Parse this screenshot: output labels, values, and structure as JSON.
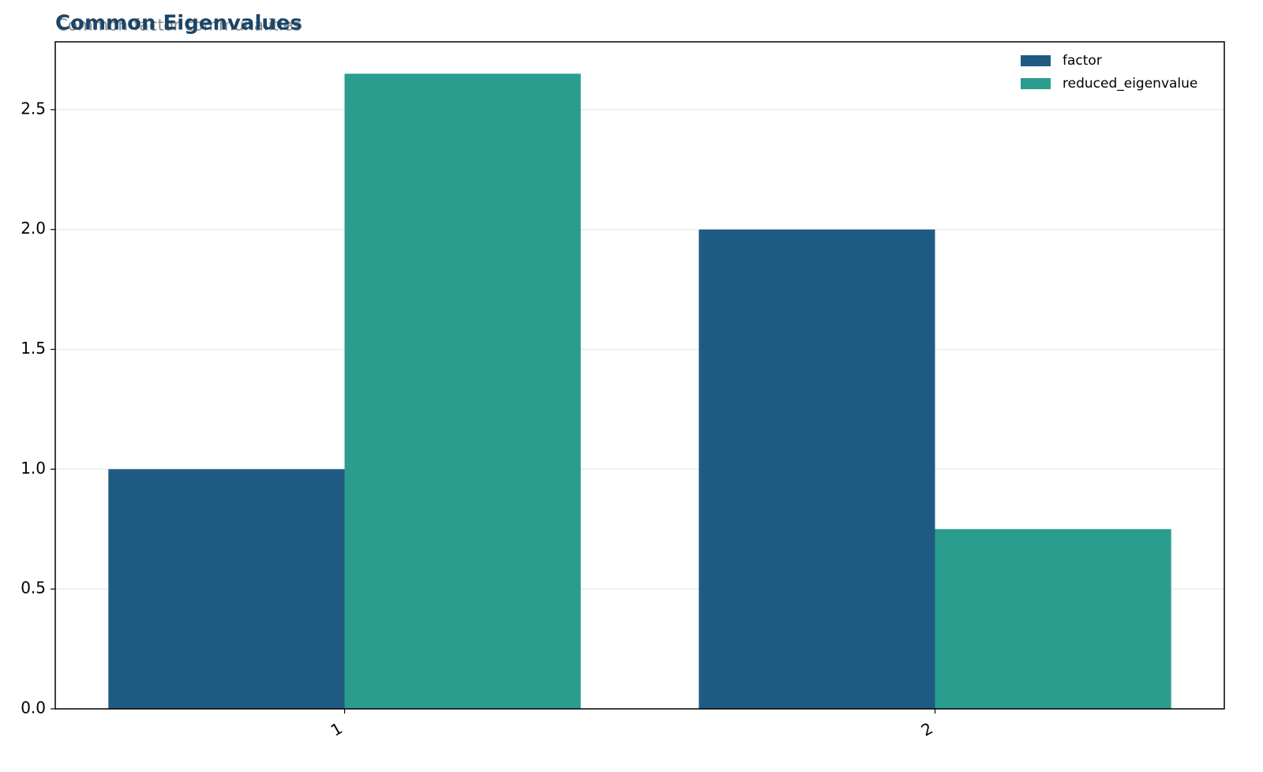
{
  "chart_data": {
    "type": "bar",
    "title": "Common Eigenvalues",
    "subtitle": "Common-factor communalities",
    "categories": [
      "1",
      "2"
    ],
    "series": [
      {
        "name": "factor",
        "color": "#1f5a82",
        "values": [
          1,
          2
        ]
      },
      {
        "name": "reduced_eigenvalue",
        "color": "#2a9d8e",
        "values": [
          2.65,
          0.75
        ]
      }
    ],
    "ylim": [
      0,
      2.783
    ],
    "yticks": [
      {
        "value": 0,
        "label": "0.0"
      },
      {
        "value": 0.5,
        "label": "0.5"
      },
      {
        "value": 1,
        "label": "1.0"
      },
      {
        "value": 1.5,
        "label": "1.5"
      },
      {
        "value": 2,
        "label": "2.0"
      },
      {
        "value": 2.5,
        "label": "2.5"
      }
    ],
    "grid": true,
    "legend": "upper right"
  }
}
